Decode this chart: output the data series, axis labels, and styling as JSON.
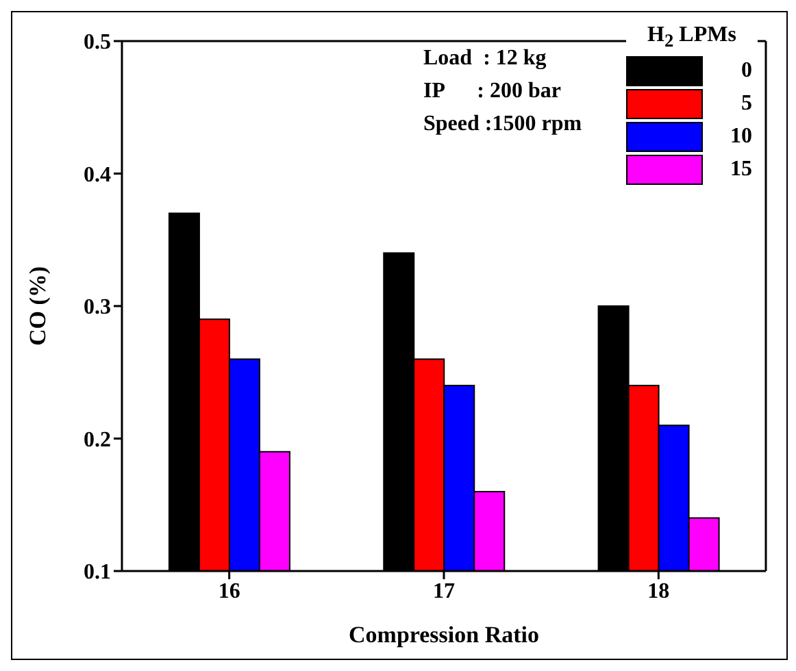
{
  "chart_data": {
    "type": "bar",
    "xlabel": "Compression Ratio",
    "ylabel": "CO (%)",
    "legend_title": "H$_{2}$ LPMs",
    "categories": [
      "16",
      "17",
      "18"
    ],
    "series": [
      {
        "name": "0",
        "color": "#000000",
        "values": [
          0.37,
          0.34,
          0.3
        ]
      },
      {
        "name": "5",
        "color": "#ff0000",
        "values": [
          0.29,
          0.26,
          0.24
        ]
      },
      {
        "name": "10",
        "color": "#0000ff",
        "values": [
          0.26,
          0.24,
          0.21
        ]
      },
      {
        "name": "15",
        "color": "#ff00ff",
        "values": [
          0.19,
          0.16,
          0.14
        ]
      }
    ],
    "ylim": [
      0.1,
      0.5
    ],
    "yticks": [
      0.1,
      0.2,
      0.3,
      0.4,
      0.5
    ],
    "grid": false,
    "legend": "top right",
    "annotations": [
      "Load  : 12 kg",
      "IP      : 200 bar",
      "Speed :1500 rpm"
    ]
  }
}
